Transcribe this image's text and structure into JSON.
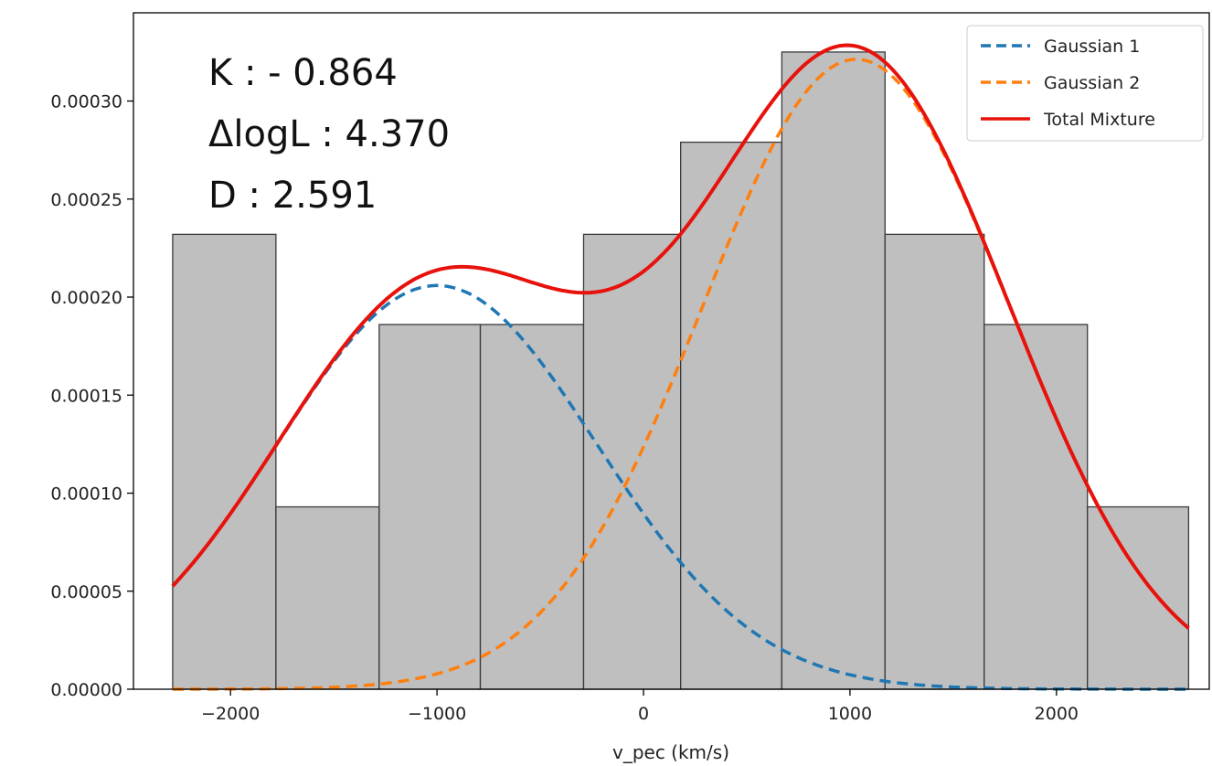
{
  "chart_data": {
    "type": "bar",
    "title": "",
    "xlabel": "v_pec (km/s)",
    "ylabel": "",
    "xlim": [
      -2470,
      2740
    ],
    "ylim": [
      0,
      0.000345
    ],
    "xticks": [
      -2000,
      -1000,
      0,
      1000,
      2000
    ],
    "xtick_labels": [
      "−2000",
      "−1000",
      "0",
      "1000",
      "2000"
    ],
    "yticks": [
      0,
      5e-05,
      0.0001,
      0.00015,
      0.0002,
      0.00025,
      0.0003
    ],
    "ytick_labels": [
      "0.00000",
      "0.00005",
      "0.00010",
      "0.00015",
      "0.00020",
      "0.00025",
      "0.00030"
    ],
    "grid": false,
    "legend_position": "top-right",
    "histogram": {
      "bin_edges": [
        -2280,
        -1780,
        -1280,
        -790,
        -290,
        180,
        670,
        1170,
        1650,
        2150,
        2640
      ],
      "values": [
        0.000232,
        9.3e-05,
        0.000186,
        0.000186,
        0.000232,
        0.000279,
        0.000325,
        0.000232,
        0.000186,
        9.3e-05
      ],
      "color": "#bfbfbf",
      "edge_color": "#3a3a3a"
    },
    "series": [
      {
        "name": "Gaussian 1",
        "style": "dashed",
        "color": "#1f77b4",
        "model": {
          "weight": 0.4,
          "mean": -1000,
          "sigma": 775
        }
      },
      {
        "name": "Gaussian 2",
        "style": "dashed",
        "color": "#ff7f0e",
        "model": {
          "weight": 0.6,
          "mean": 1030,
          "sigma": 745
        }
      },
      {
        "name": "Total Mixture",
        "style": "solid",
        "color": "#e8120c",
        "model": "sum"
      }
    ],
    "annotations": [
      {
        "id": "k",
        "text": "K : - 0.864"
      },
      {
        "id": "dlogl",
        "text": "ΔlogL : 4.370"
      },
      {
        "id": "d",
        "text": "D : 2.591"
      }
    ]
  }
}
